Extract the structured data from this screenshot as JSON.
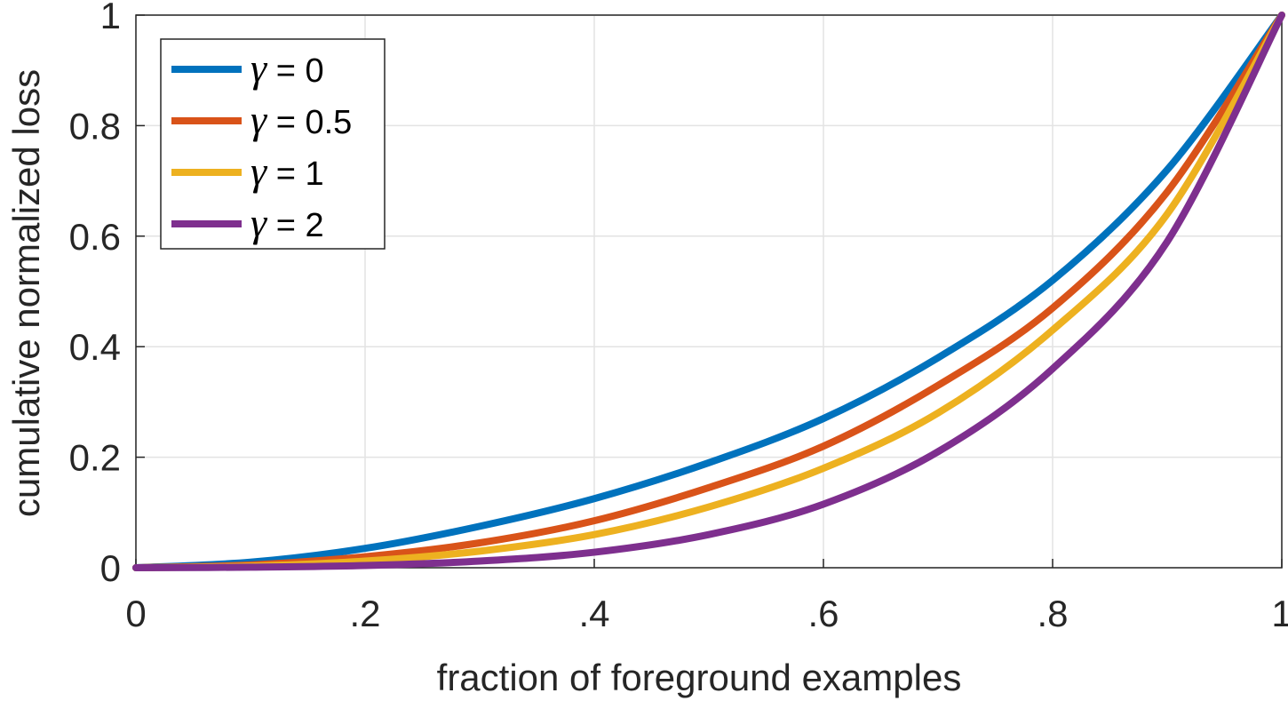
{
  "chart_data": {
    "type": "line",
    "title": "",
    "xlabel": "fraction of foreground examples",
    "ylabel": "cumulative normalized loss",
    "xlim": [
      0,
      1
    ],
    "ylim": [
      0,
      1
    ],
    "grid": true,
    "legend_position": "top-left",
    "x_ticks": [
      {
        "value": 0,
        "label": "0"
      },
      {
        "value": 0.2,
        "label": ".2"
      },
      {
        "value": 0.4,
        "label": ".4"
      },
      {
        "value": 0.6,
        "label": ".6"
      },
      {
        "value": 0.8,
        "label": ".8"
      },
      {
        "value": 1,
        "label": "1"
      }
    ],
    "y_ticks": [
      {
        "value": 0,
        "label": "0"
      },
      {
        "value": 0.2,
        "label": "0.2"
      },
      {
        "value": 0.4,
        "label": "0.4"
      },
      {
        "value": 0.6,
        "label": "0.6"
      },
      {
        "value": 0.8,
        "label": "0.8"
      },
      {
        "value": 1,
        "label": "1"
      }
    ],
    "x": [
      0,
      0.1,
      0.2,
      0.3,
      0.4,
      0.5,
      0.6,
      0.7,
      0.8,
      0.9,
      1.0
    ],
    "series": [
      {
        "name": "γ = 0",
        "gamma_symbol": "γ",
        "label_suffix": " = 0",
        "color": "#0072BD",
        "values": [
          0,
          0.01,
          0.035,
          0.075,
          0.125,
          0.19,
          0.27,
          0.38,
          0.52,
          0.72,
          1.0
        ]
      },
      {
        "name": "γ = 0.5",
        "gamma_symbol": "γ",
        "label_suffix": " = 0.5",
        "color": "#D95319",
        "values": [
          0,
          0.005,
          0.02,
          0.045,
          0.085,
          0.145,
          0.22,
          0.33,
          0.47,
          0.68,
          1.0
        ]
      },
      {
        "name": "γ = 1",
        "gamma_symbol": "γ",
        "label_suffix": " = 1",
        "color": "#EDB120",
        "values": [
          0,
          0.003,
          0.012,
          0.03,
          0.06,
          0.11,
          0.18,
          0.28,
          0.43,
          0.64,
          1.0
        ]
      },
      {
        "name": "γ = 2",
        "gamma_symbol": "γ",
        "label_suffix": " = 2",
        "color": "#7E2F8E",
        "values": [
          0,
          0.001,
          0.004,
          0.012,
          0.028,
          0.06,
          0.115,
          0.21,
          0.36,
          0.59,
          1.0
        ]
      }
    ]
  }
}
